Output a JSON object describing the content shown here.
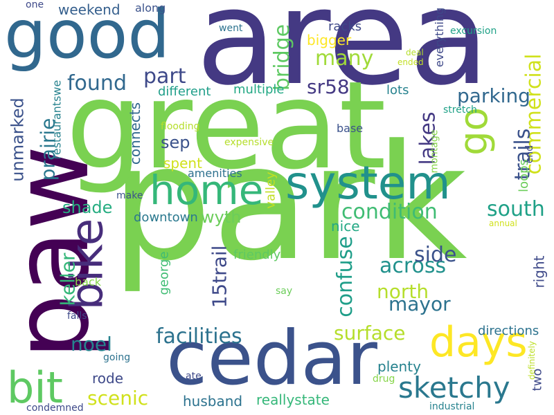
{
  "words": [
    {
      "text": "park",
      "color": "#7ad151"
    },
    {
      "text": "area",
      "color": "#443983"
    },
    {
      "text": "great",
      "color": "#7ad151"
    },
    {
      "text": "paw",
      "color": "#440154"
    },
    {
      "text": "cedar",
      "color": "#3b528b"
    },
    {
      "text": "good",
      "color": "#31688e"
    },
    {
      "text": "system",
      "color": "#21918c"
    },
    {
      "text": "home",
      "color": "#35b779"
    },
    {
      "text": "bike",
      "color": "#472d7b"
    },
    {
      "text": "bit",
      "color": "#5ec962"
    },
    {
      "text": "days",
      "color": "#fde725"
    },
    {
      "text": "go",
      "color": "#a0da39"
    },
    {
      "text": "sketchy",
      "color": "#2a788e"
    },
    {
      "text": "facilities",
      "color": "#2c728e"
    },
    {
      "text": "condition",
      "color": "#3fbc73"
    },
    {
      "text": "south",
      "color": "#1fa187"
    },
    {
      "text": "commercial",
      "color": "#d0e11c"
    },
    {
      "text": "across",
      "color": "#21918c"
    },
    {
      "text": "trails",
      "color": "#3b528b"
    },
    {
      "text": "surface",
      "color": "#b5de2b"
    },
    {
      "text": "confuse",
      "color": "#1f9e89"
    },
    {
      "text": "lakes",
      "color": "#443983"
    },
    {
      "text": "parking",
      "color": "#31688e"
    },
    {
      "text": "mayor",
      "color": "#2c728e"
    },
    {
      "text": "north",
      "color": "#b5de2b"
    },
    {
      "text": "side",
      "color": "#3b528b"
    },
    {
      "text": "many",
      "color": "#a0da39"
    },
    {
      "text": "bridge",
      "color": "#5ec962"
    },
    {
      "text": "sr58",
      "color": "#443983"
    },
    {
      "text": "part",
      "color": "#3e4989"
    },
    {
      "text": "found",
      "color": "#31688e"
    },
    {
      "text": "keller",
      "color": "#35b779"
    },
    {
      "text": "unmarked",
      "color": "#3b528b"
    },
    {
      "text": "prairie",
      "color": "#2a788e"
    },
    {
      "text": "shade",
      "color": "#26ad81"
    },
    {
      "text": "scenic",
      "color": "#d0e11c"
    },
    {
      "text": "noel",
      "color": "#26828e"
    },
    {
      "text": "15trail",
      "color": "#3e4989"
    },
    {
      "text": "wyth",
      "color": "#6ccd5a"
    },
    {
      "text": "weekend",
      "color": "#355f8d"
    },
    {
      "text": "bigger",
      "color": "#fde725"
    },
    {
      "text": "connects",
      "color": "#31688e"
    },
    {
      "text": "sep",
      "color": "#3b528b"
    },
    {
      "text": "rode",
      "color": "#3e4989"
    },
    {
      "text": "husband",
      "color": "#2c728e"
    },
    {
      "text": "reallystate",
      "color": "#35b779"
    },
    {
      "text": "plenty",
      "color": "#26828e"
    },
    {
      "text": "two",
      "color": "#3e4989"
    },
    {
      "text": "spent",
      "color": "#d0e11c"
    },
    {
      "text": "nice",
      "color": "#22a884"
    },
    {
      "text": "lots",
      "color": "#26828e"
    },
    {
      "text": "racks",
      "color": "#3e4989"
    },
    {
      "text": "loops",
      "color": "#6ccd5a"
    },
    {
      "text": "valley",
      "color": "#c2df23"
    },
    {
      "text": "george",
      "color": "#3fbc73"
    },
    {
      "text": "different",
      "color": "#1f9e89"
    },
    {
      "text": "multiple",
      "color": "#22a884"
    },
    {
      "text": "downtown",
      "color": "#2a788e"
    },
    {
      "text": "amenities",
      "color": "#2d708e"
    },
    {
      "text": "friendly",
      "color": "#5ec962"
    },
    {
      "text": "restaurantswe",
      "color": "#26828e"
    },
    {
      "text": "directions",
      "color": "#2c728e"
    },
    {
      "text": "right",
      "color": "#3e4989"
    },
    {
      "text": "back",
      "color": "#86d549"
    },
    {
      "text": "montage",
      "color": "#86d549"
    },
    {
      "text": "everything",
      "color": "#3e4989"
    },
    {
      "text": "base",
      "color": "#3b528b"
    },
    {
      "text": "end",
      "color": "#3e4989"
    },
    {
      "text": "stretch",
      "color": "#1fa187"
    },
    {
      "text": "excursion",
      "color": "#1fa187"
    },
    {
      "text": "went",
      "color": "#2c728e"
    },
    {
      "text": "along",
      "color": "#3b528b"
    },
    {
      "text": "one",
      "color": "#3e4989"
    },
    {
      "text": "flooding",
      "color": "#b5de2b"
    },
    {
      "text": "expensive",
      "color": "#b5de2b"
    },
    {
      "text": "make",
      "color": "#3b528b"
    },
    {
      "text": "falls",
      "color": "#3e4989"
    },
    {
      "text": "going",
      "color": "#2c728e"
    },
    {
      "text": "ate",
      "color": "#3e4989"
    },
    {
      "text": "drug",
      "color": "#86d549"
    },
    {
      "text": "say",
      "color": "#6ccd5a"
    },
    {
      "text": "annual",
      "color": "#d0e11c"
    },
    {
      "text": "deal",
      "color": "#b5de2b"
    },
    {
      "text": "ended",
      "color": "#c2df23"
    },
    {
      "text": "definitely",
      "color": "#bddf26"
    },
    {
      "text": "industrial",
      "color": "#26828e"
    },
    {
      "text": "condemned",
      "color": "#3e4989"
    }
  ]
}
